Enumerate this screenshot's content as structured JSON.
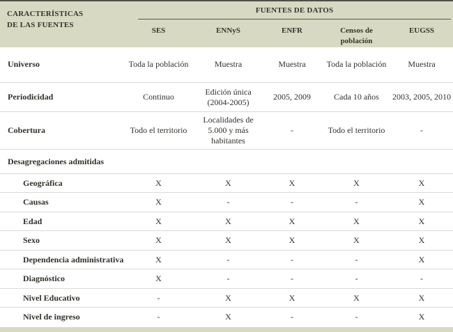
{
  "colors": {
    "header_bg": "#d8d9c3",
    "dark_rule": "#4f4f45",
    "row_separator": "#d9d9d9",
    "text": "#30302a"
  },
  "table": {
    "corner_title": "CARACTERÍSTICAS\nDE LAS FUENTES",
    "group_header": "FUENTES DE DATOS",
    "columns": [
      "SES",
      "ENNyS",
      "ENFR",
      "Censos de población",
      "EUGSS"
    ],
    "rows": [
      {
        "label": "Universo",
        "type": "normal",
        "indent": false,
        "values": [
          "Toda la población",
          "Muestra",
          "Muestra",
          "Toda la población",
          "Muestra"
        ]
      },
      {
        "label": "Periodicidad",
        "type": "normal",
        "indent": false,
        "values": [
          "Continuo",
          "Edición única (2004-2005)",
          "2005, 2009",
          "Cada 10 años",
          "2003, 2005, 2010"
        ]
      },
      {
        "label": "Cobertura",
        "type": "normal",
        "indent": false,
        "values": [
          "Todo el territorio",
          "Localidades de 5.000 y más habitantes",
          "-",
          "Todo el territorio",
          "-"
        ]
      },
      {
        "label": "Desagregaciones admitidas",
        "type": "section",
        "indent": false,
        "values": [
          "",
          "",
          "",
          "",
          ""
        ]
      },
      {
        "label": "Geográfica",
        "type": "normal",
        "indent": true,
        "values": [
          "X",
          "X",
          "X",
          "X",
          "X"
        ]
      },
      {
        "label": "Causas",
        "type": "normal",
        "indent": true,
        "values": [
          "X",
          "-",
          "-",
          "-",
          "X"
        ]
      },
      {
        "label": "Edad",
        "type": "normal",
        "indent": true,
        "values": [
          "X",
          "X",
          "X",
          "X",
          "X"
        ]
      },
      {
        "label": "Sexo",
        "type": "normal",
        "indent": true,
        "values": [
          "X",
          "X",
          "X",
          "X",
          "X"
        ]
      },
      {
        "label": "Dependencia administrativa",
        "type": "normal",
        "indent": true,
        "values": [
          "X",
          "-",
          "-",
          "-",
          "X"
        ]
      },
      {
        "label": "Diagnóstico",
        "type": "normal",
        "indent": true,
        "values": [
          "X",
          "-",
          "-",
          "-",
          "-"
        ]
      },
      {
        "label": "Nivel Educativo",
        "type": "normal",
        "indent": true,
        "values": [
          "-",
          "X",
          "X",
          "X",
          "X"
        ]
      },
      {
        "label": "Nivel de ingreso",
        "type": "normal",
        "indent": true,
        "values": [
          "-",
          "X",
          "-",
          "-",
          "X"
        ]
      }
    ]
  }
}
